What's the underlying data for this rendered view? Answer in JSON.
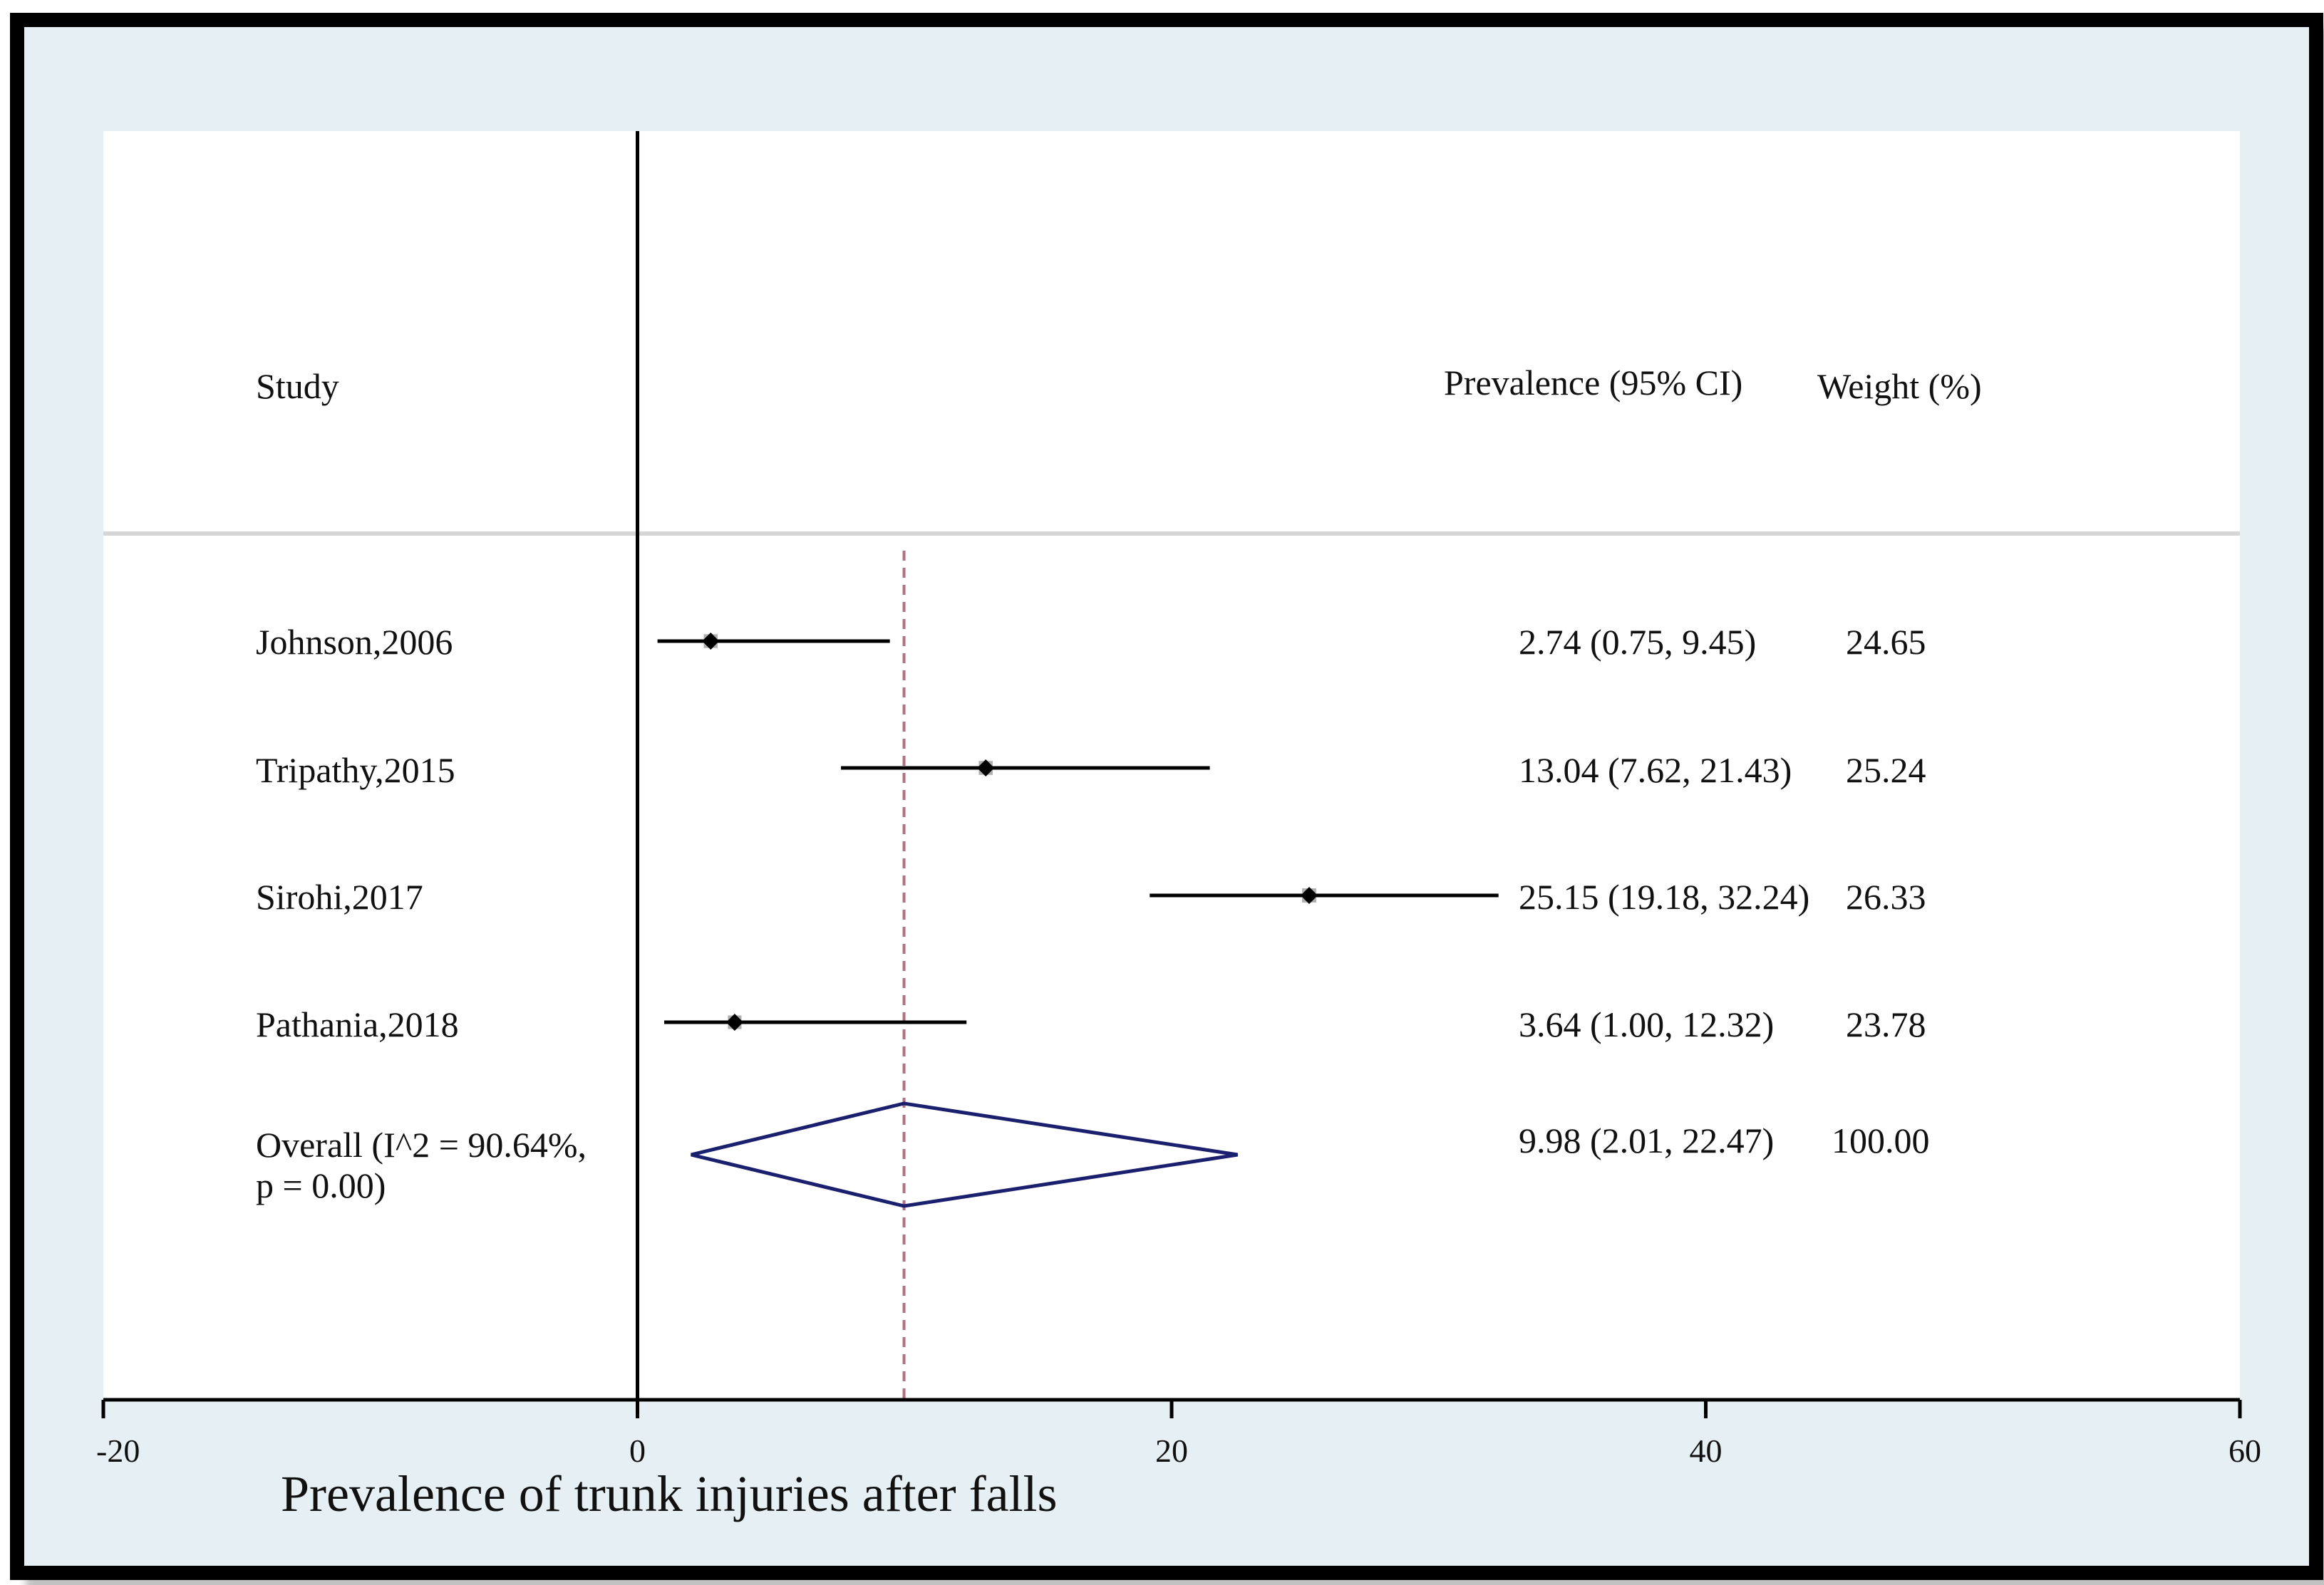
{
  "colors": {
    "background": "#e6eff3",
    "plot_bg": "#ffffff",
    "ci_line": "#000000",
    "weight_box": "#b0b0b0",
    "diamond": "#1a1f6e",
    "null_line": "#000000",
    "overall_line": "#b07080"
  },
  "chart_data": {
    "type": "forest",
    "title": "",
    "xlabel": "Prevalence of trunk injuries after falls",
    "xlim": [
      -20,
      60
    ],
    "xticks": [
      "-20",
      "0",
      "20",
      "40",
      "60"
    ],
    "xtick_values": [
      -20,
      0,
      20,
      40,
      60
    ],
    "null_value": 0,
    "headers": {
      "study": "Study",
      "estimate": "Prevalence (95% CI)",
      "weight": "Weight (%)"
    },
    "studies": [
      {
        "name": "Johnson,2006",
        "estimate": 2.74,
        "lower": 0.75,
        "upper": 9.45,
        "ci_text": "2.74 (0.75, 9.45)",
        "weight": 24.65,
        "weight_text": "24.65"
      },
      {
        "name": "Tripathy,2015",
        "estimate": 13.04,
        "lower": 7.62,
        "upper": 21.43,
        "ci_text": "13.04 (7.62, 21.43)",
        "weight": 25.24,
        "weight_text": "25.24"
      },
      {
        "name": "Sirohi,2017",
        "estimate": 25.15,
        "lower": 19.18,
        "upper": 32.24,
        "ci_text": "25.15 (19.18, 32.24)",
        "weight": 26.33,
        "weight_text": "26.33"
      },
      {
        "name": "Pathania,2018",
        "estimate": 3.64,
        "lower": 1.0,
        "upper": 12.32,
        "ci_text": "3.64 (1.00, 12.32)",
        "weight": 23.78,
        "weight_text": "23.78"
      }
    ],
    "overall": {
      "label_line1": "Overall (I^2 = 90.64%,",
      "label_line2": "p = 0.00)",
      "estimate": 9.98,
      "lower": 2.01,
      "upper": 22.47,
      "ci_text": "9.98 (2.01, 22.47)",
      "weight_text": "100.00"
    }
  }
}
